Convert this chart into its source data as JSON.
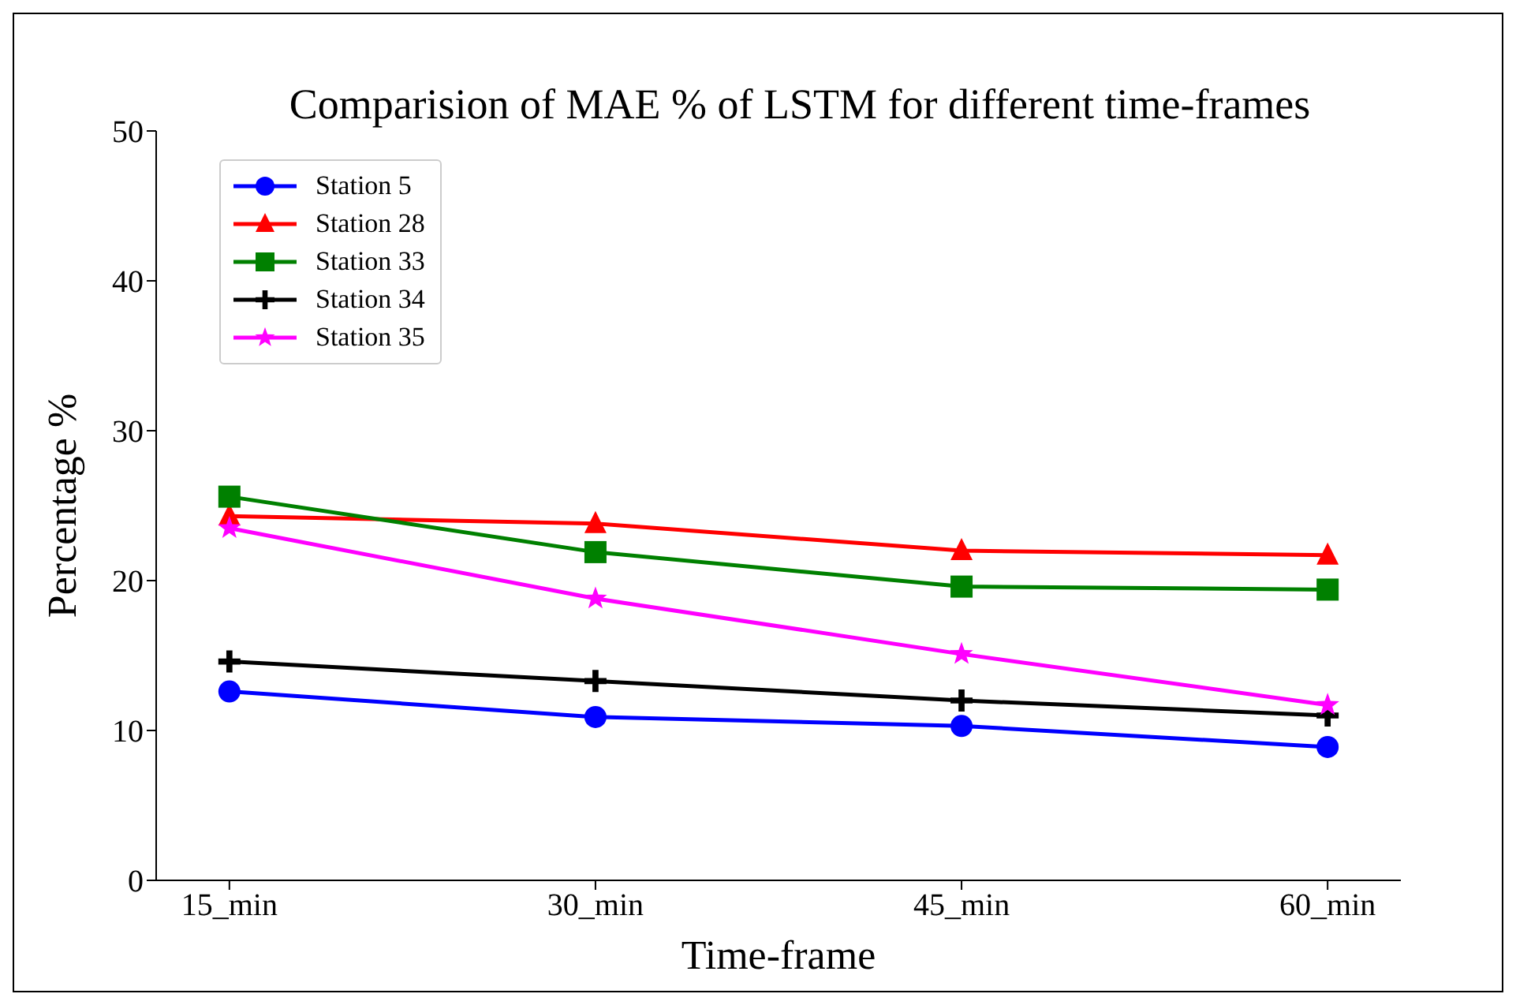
{
  "chart_data": {
    "type": "line",
    "title": "Comparision of MAE % of LSTM for different time-frames",
    "xlabel": "Time-frame",
    "ylabel": "Percentage %",
    "categories": [
      "15_min",
      "30_min",
      "45_min",
      "60_min"
    ],
    "ylim": [
      0,
      50
    ],
    "yticks": [
      0,
      10,
      20,
      30,
      40,
      50
    ],
    "grid": false,
    "legend": "top left",
    "line_style": "solid",
    "series": [
      {
        "name": "Station 5",
        "color": "#0000ff",
        "marker": "circle",
        "values": [
          12.6,
          10.9,
          10.3,
          8.9
        ]
      },
      {
        "name": "Station 28",
        "color": "#ff0000",
        "marker": "triangle",
        "values": [
          24.3,
          23.8,
          22.0,
          21.7
        ]
      },
      {
        "name": "Station 33",
        "color": "#008000",
        "marker": "square",
        "values": [
          25.6,
          21.9,
          19.6,
          19.4
        ]
      },
      {
        "name": "Station 34",
        "color": "#000000",
        "marker": "cross",
        "values": [
          14.6,
          13.3,
          12.0,
          11.0
        ]
      },
      {
        "name": "Station 35",
        "color": "#ff00ff",
        "marker": "star",
        "values": [
          23.5,
          18.8,
          15.1,
          11.7
        ]
      }
    ]
  }
}
